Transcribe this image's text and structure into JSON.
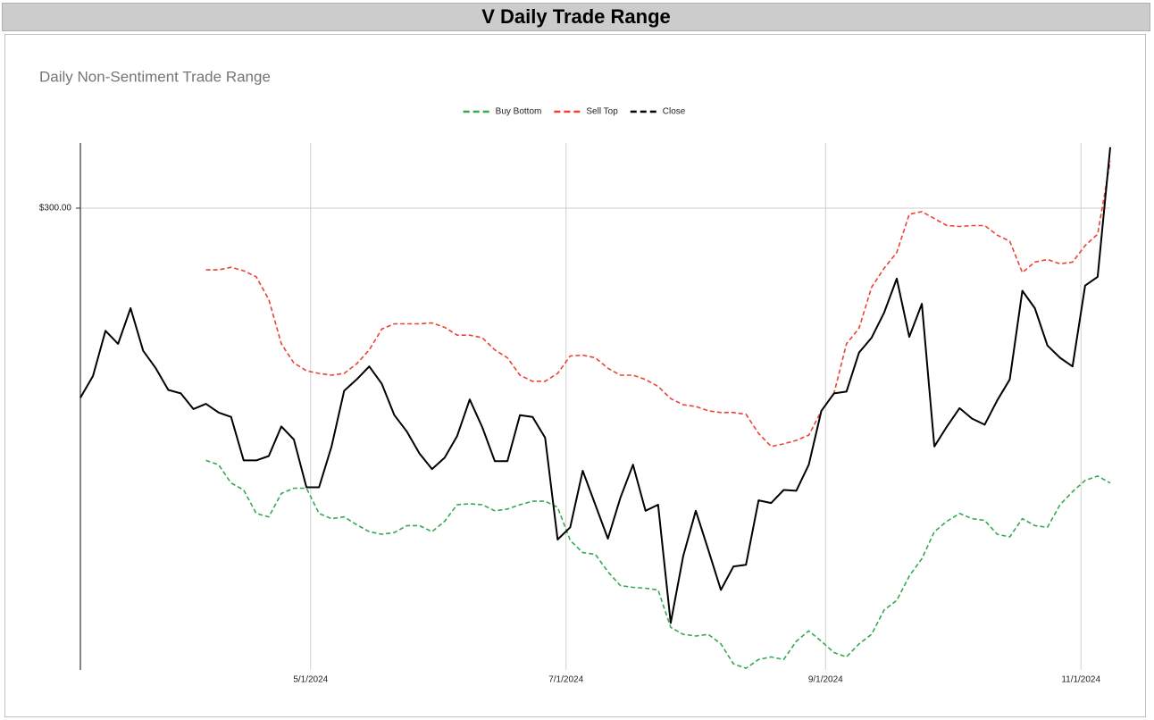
{
  "header": {
    "title": "V Daily Trade Range"
  },
  "chart_data": {
    "type": "line",
    "title": "Daily Non-Sentiment Trade Range",
    "legend": "top",
    "grid": true,
    "x": [
      "2024-03-07",
      "2024-03-10",
      "2024-03-13",
      "2024-03-16",
      "2024-03-19",
      "2024-03-22",
      "2024-03-25",
      "2024-03-28",
      "2024-03-31",
      "2024-04-03",
      "2024-04-06",
      "2024-04-09",
      "2024-04-12",
      "2024-04-15",
      "2024-04-18",
      "2024-04-21",
      "2024-04-24",
      "2024-04-27",
      "2024-04-30",
      "2024-05-03",
      "2024-05-06",
      "2024-05-09",
      "2024-05-12",
      "2024-05-15",
      "2024-05-18",
      "2024-05-21",
      "2024-05-24",
      "2024-05-27",
      "2024-05-30",
      "2024-06-02",
      "2024-06-05",
      "2024-06-08",
      "2024-06-11",
      "2024-06-14",
      "2024-06-17",
      "2024-06-20",
      "2024-06-23",
      "2024-06-26",
      "2024-06-29",
      "2024-07-02",
      "2024-07-05",
      "2024-07-08",
      "2024-07-11",
      "2024-07-14",
      "2024-07-17",
      "2024-07-20",
      "2024-07-23",
      "2024-07-26",
      "2024-07-29",
      "2024-08-01",
      "2024-08-04",
      "2024-08-07",
      "2024-08-10",
      "2024-08-13",
      "2024-08-16",
      "2024-08-19",
      "2024-08-22",
      "2024-08-25",
      "2024-08-28",
      "2024-08-31",
      "2024-09-03",
      "2024-09-06",
      "2024-09-09",
      "2024-09-12",
      "2024-09-15",
      "2024-09-18",
      "2024-09-21",
      "2024-09-24",
      "2024-09-27",
      "2024-09-30",
      "2024-10-03",
      "2024-10-06",
      "2024-10-09",
      "2024-10-12",
      "2024-10-15",
      "2024-10-18",
      "2024-10-21",
      "2024-10-24",
      "2024-10-27",
      "2024-10-30",
      "2024-11-02",
      "2024-11-05",
      "2024-11-08"
    ],
    "series": [
      {
        "name": "Buy Bottom",
        "color": "#34a853",
        "dashed": true,
        "values": [
          null,
          null,
          null,
          null,
          null,
          null,
          null,
          null,
          null,
          null,
          271.0,
          270.5,
          268.4,
          267.6,
          264.9,
          264.5,
          267.2,
          267.8,
          267.8,
          264.9,
          264.3,
          264.5,
          263.6,
          262.8,
          262.5,
          262.7,
          263.5,
          263.5,
          262.8,
          264.0,
          265.9,
          266.0,
          265.9,
          265.2,
          265.4,
          265.9,
          266.3,
          266.3,
          265.6,
          261.8,
          260.4,
          260.2,
          258.2,
          256.6,
          256.4,
          256.3,
          256.1,
          251.8,
          251.0,
          250.8,
          251.0,
          249.9,
          247.6,
          247.1,
          248.1,
          248.4,
          248.1,
          250.2,
          251.4,
          250.2,
          248.9,
          248.4,
          249.9,
          251.0,
          253.8,
          254.9,
          257.7,
          259.7,
          262.8,
          264.0,
          264.9,
          264.3,
          264.1,
          262.5,
          262.2,
          264.3,
          263.5,
          263.3,
          265.9,
          267.4,
          268.7,
          269.2,
          268.4
        ]
      },
      {
        "name": "Sell Top",
        "color": "#ea4335",
        "dashed": true,
        "values": [
          null,
          null,
          null,
          null,
          null,
          null,
          null,
          null,
          null,
          null,
          292.9,
          292.9,
          293.2,
          292.8,
          292.1,
          289.5,
          284.4,
          282.2,
          281.3,
          281.0,
          280.8,
          281.0,
          282.1,
          283.7,
          286.1,
          286.7,
          286.7,
          286.7,
          286.8,
          286.3,
          285.4,
          285.4,
          285.1,
          283.7,
          282.8,
          280.8,
          280.1,
          280.1,
          281.0,
          283.0,
          283.1,
          282.8,
          281.6,
          280.8,
          280.8,
          280.3,
          279.5,
          278.1,
          277.4,
          277.2,
          276.7,
          276.5,
          276.5,
          276.3,
          274.1,
          272.6,
          272.9,
          273.3,
          273.9,
          276.7,
          278.7,
          284.4,
          286.2,
          290.9,
          293.1,
          294.9,
          299.3,
          299.6,
          298.8,
          298.0,
          297.9,
          298.0,
          298.0,
          296.9,
          296.2,
          292.6,
          293.8,
          294.1,
          293.6,
          293.8,
          295.7,
          297.0,
          305.4
        ]
      },
      {
        "name": "Close",
        "color": "#000000",
        "dashed": false,
        "values": [
          278.2,
          280.7,
          285.9,
          284.4,
          288.5,
          283.6,
          281.6,
          279.1,
          278.7,
          276.9,
          277.5,
          276.5,
          276.0,
          271.0,
          271.0,
          271.5,
          274.9,
          273.4,
          267.9,
          267.9,
          272.6,
          279.0,
          280.3,
          281.8,
          279.8,
          276.2,
          274.3,
          271.8,
          270.0,
          271.3,
          273.8,
          278.0,
          274.8,
          270.9,
          270.9,
          276.2,
          276.0,
          273.6,
          261.9,
          263.3,
          269.8,
          265.9,
          262.0,
          266.7,
          270.5,
          265.2,
          265.9,
          252.3,
          260.0,
          265.2,
          260.7,
          256.1,
          258.8,
          259.0,
          266.4,
          266.1,
          267.6,
          267.5,
          270.5,
          276.7,
          278.7,
          278.9,
          283.4,
          285.1,
          288.0,
          291.9,
          285.2,
          289.0,
          272.6,
          274.9,
          277.0,
          275.8,
          275.1,
          277.9,
          280.3,
          290.5,
          288.5,
          284.2,
          282.8,
          281.8,
          291.1,
          292.1,
          307.0
        ]
      }
    ],
    "xlim": [
      "2024-03-07",
      "2024-11-08"
    ],
    "xticks": [
      {
        "value": "2024-05-01",
        "label": "5/1/2024"
      },
      {
        "value": "2024-07-01",
        "label": "7/1/2024"
      },
      {
        "value": "2024-09-01",
        "label": "9/1/2024"
      },
      {
        "value": "2024-11-01",
        "label": "11/1/2024"
      }
    ],
    "ylim": [
      246.9,
      307.5
    ],
    "yticks": [
      {
        "value": 300,
        "label": "$300.00"
      }
    ]
  }
}
